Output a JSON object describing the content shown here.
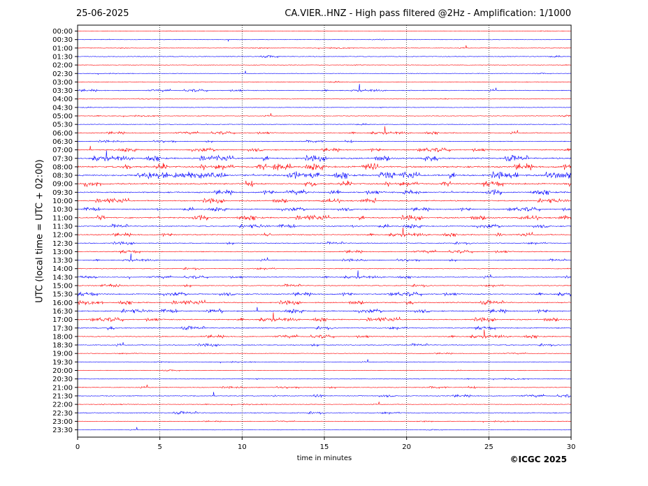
{
  "header": {
    "date": "25-06-2025",
    "title": "CA.VIER..HNZ - High pass filtered @2Hz - Amplification: 1/1000"
  },
  "footer": {
    "copyright": "©ICGC 2025"
  },
  "colors": {
    "odd_trace": "#ff0000",
    "even_trace": "#0000ff",
    "grid": "#000000"
  },
  "chart_data": {
    "type": "line",
    "title": "CA.VIER..HNZ - High pass filtered @2Hz - Amplification: 1/1000",
    "xlabel": "time in minutes",
    "ylabel": "UTC (local time = UTC + 02:00)",
    "xlim": [
      0,
      30
    ],
    "x_ticks": [
      0,
      5,
      10,
      15,
      20,
      25,
      30
    ],
    "vertical_grid": "dotted at 5, 10, 15, 20, 25",
    "trace_color_order": [
      "red",
      "blue"
    ],
    "y_ticks": [
      "00:00",
      "00:30",
      "01:00",
      "01:30",
      "02:00",
      "02:30",
      "03:00",
      "03:30",
      "04:00",
      "04:30",
      "05:00",
      "05:30",
      "06:00",
      "06:30",
      "07:00",
      "07:30",
      "08:00",
      "08:30",
      "09:00",
      "09:30",
      "10:00",
      "10:30",
      "11:00",
      "11:30",
      "12:00",
      "12:30",
      "13:00",
      "13:30",
      "14:00",
      "14:30",
      "15:00",
      "15:30",
      "16:00",
      "16:30",
      "17:00",
      "17:30",
      "18:00",
      "18:30",
      "19:00",
      "19:30",
      "20:00",
      "20:30",
      "21:00",
      "21:30",
      "22:00",
      "22:30",
      "23:00",
      "23:30"
    ],
    "trace_activity": [
      0.5,
      0.6,
      0.8,
      1.5,
      0.6,
      0.5,
      1.2,
      1.8,
      0.7,
      0.8,
      1.0,
      1.4,
      2.0,
      1.6,
      3.0,
      4.5,
      5.5,
      5.5,
      4.5,
      4.0,
      3.5,
      3.0,
      3.8,
      3.0,
      2.8,
      2.0,
      2.2,
      1.8,
      1.8,
      2.0,
      2.2,
      3.0,
      3.0,
      3.2,
      3.0,
      2.6,
      2.4,
      2.0,
      1.0,
      0.8,
      0.8,
      1.0,
      1.4,
      2.0,
      0.8,
      2.0,
      0.8,
      0.5
    ]
  }
}
